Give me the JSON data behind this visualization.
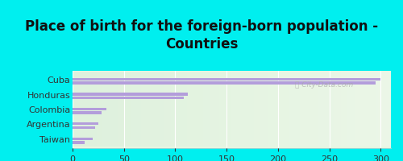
{
  "title": "Place of birth for the foreign-born population -\nCountries",
  "categories": [
    "Cuba",
    "Honduras",
    "Colombia",
    "Argentina",
    "Taiwan"
  ],
  "top_vals": [
    300,
    112,
    33,
    25,
    20
  ],
  "bot_vals": [
    295,
    108,
    28,
    22,
    12
  ],
  "bar_color": "#b39ddb",
  "background_outer": "#00efef",
  "background_inner_left": "#e8f5e0",
  "background_inner_right": "#f5faf0",
  "xlim": [
    0,
    310
  ],
  "xticks": [
    0,
    50,
    100,
    150,
    200,
    250,
    300
  ],
  "title_fontsize": 12,
  "label_fontsize": 8,
  "tick_fontsize": 8,
  "watermark": "ⓘ City-Data.com"
}
